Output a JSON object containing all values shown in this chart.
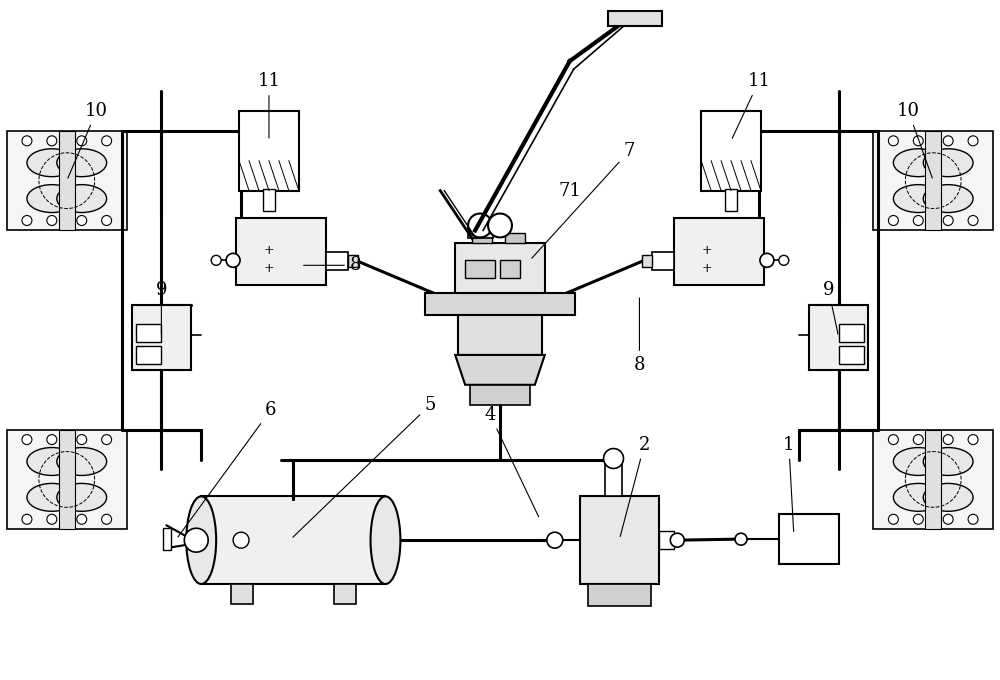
{
  "bg_color": "#ffffff",
  "lc": "#000000",
  "lw": 1.2,
  "tlw": 2.2,
  "fig_width": 10.0,
  "fig_height": 6.8,
  "dpi": 100,
  "label_fontsize": 13
}
